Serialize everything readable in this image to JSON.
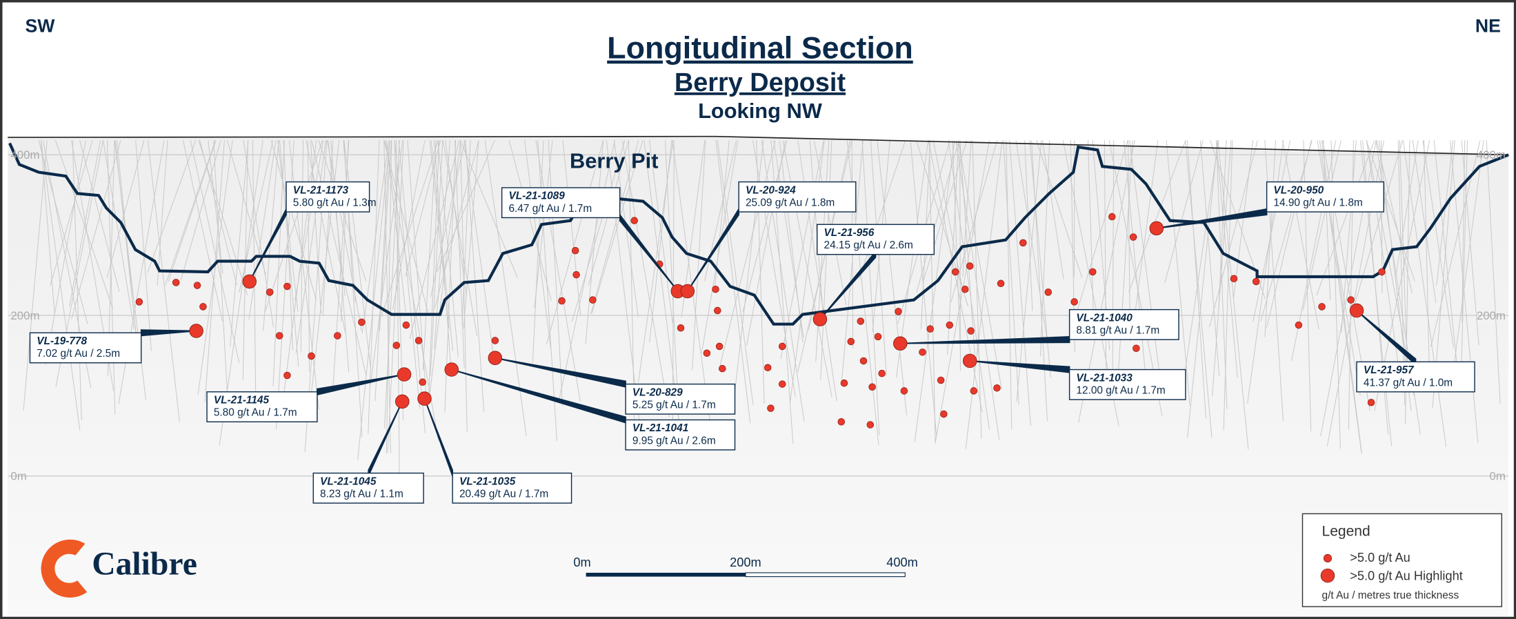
{
  "header": {
    "left": "SW",
    "right": "NE",
    "title": "Longitudinal Section",
    "subtitle": "Berry Deposit",
    "view": "Looking NW"
  },
  "pit_label": "Berry Pit",
  "elevation_labels": [
    "400m",
    "200m",
    "0m"
  ],
  "callouts": [
    {
      "hole": "VL-21-1173",
      "grade": "5.80 g/t Au / 1.3m"
    },
    {
      "hole": "VL-21-1089",
      "grade": "6.47 g/t Au / 1.7m"
    },
    {
      "hole": "VL-20-924",
      "grade": "25.09 g/t Au / 1.8m"
    },
    {
      "hole": "VL-21-956",
      "grade": "24.15 g/t Au / 2.6m"
    },
    {
      "hole": "VL-20-950",
      "grade": "14.90 g/t Au / 1.8m"
    },
    {
      "hole": "VL-19-778",
      "grade": "7.02 g/t Au / 2.5m"
    },
    {
      "hole": "VL-21-1040",
      "grade": "8.81 g/t Au / 1.7m"
    },
    {
      "hole": "VL-21-1033",
      "grade": "12.00 g/t Au / 1.7m"
    },
    {
      "hole": "VL-21-957",
      "grade": "41.37 g/t Au / 1.0m"
    },
    {
      "hole": "VL-21-1145",
      "grade": "5.80 g/t Au / 1.7m"
    },
    {
      "hole": "VL-20-829",
      "grade": "5.25 g/t Au / 1.7m"
    },
    {
      "hole": "VL-21-1041",
      "grade": "9.95 g/t Au / 2.6m"
    },
    {
      "hole": "VL-21-1045",
      "grade": "8.23 g/t Au / 1.1m"
    },
    {
      "hole": "VL-21-1035",
      "grade": "20.49 g/t Au / 1.7m"
    }
  ],
  "scale_bar": [
    "0m",
    "200m",
    "400m"
  ],
  "legend": {
    "title": "Legend",
    "items": [
      ">5.0 g/t Au",
      ">5.0 g/t Au Highlight"
    ],
    "note": "g/t Au / metres true thickness"
  },
  "logo": "Calibre"
}
